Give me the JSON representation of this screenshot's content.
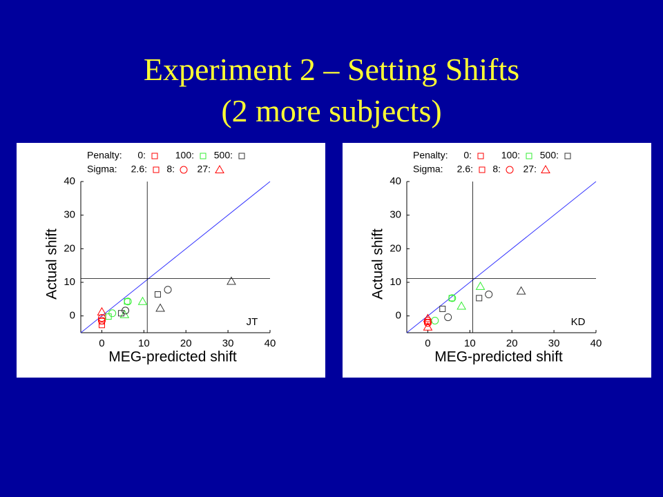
{
  "header": {
    "title_lines": [
      "Experiment 2 – Setting Shifts",
      "(2 more subjects)"
    ]
  },
  "chart_data": [
    {
      "type": "scatter",
      "xlabel": "MEG-predicted shift",
      "ylabel": "Actual shift",
      "annotation": "JT",
      "xlim": [
        -5,
        40
      ],
      "ylim": [
        -5,
        40
      ],
      "xticks": [
        0,
        10,
        20,
        30,
        40
      ],
      "yticks": [
        0,
        10,
        20,
        30,
        40
      ],
      "identity_line": true,
      "identity_color": "#3333ff",
      "vline": 10.8,
      "hline": 11.1,
      "legend": [
        {
          "label": "Penalty:",
          "items": [
            {
              "label": "0:",
              "color": "#ff0000",
              "marker": "square"
            },
            {
              "label": "100:",
              "color": "#33ee33",
              "marker": "square"
            },
            {
              "label": "500:",
              "color": "#333333",
              "marker": "square"
            }
          ]
        },
        {
          "label": "Sigma:",
          "items": [
            {
              "label": "2.6:",
              "color": "#ff0000",
              "marker": "square"
            },
            {
              "label": "8:",
              "color": "#ff0000",
              "marker": "circle"
            },
            {
              "label": "27:",
              "color": "#ff0000",
              "marker": "triangle"
            }
          ]
        }
      ],
      "series": [
        {
          "color": "#ff0000",
          "marker": "square",
          "x": [
            0,
            0
          ],
          "values": [
            -1.6,
            -2.7
          ]
        },
        {
          "color": "#ff0000",
          "marker": "circle",
          "x": [
            0,
            0
          ],
          "values": [
            -0.6,
            -1.4
          ]
        },
        {
          "color": "#ff0000",
          "marker": "triangle",
          "x": [
            0
          ],
          "values": [
            1.2
          ]
        },
        {
          "color": "#33ee33",
          "marker": "square",
          "x": [
            1.6,
            6
          ],
          "values": [
            -0.2,
            4.3
          ]
        },
        {
          "color": "#33ee33",
          "marker": "circle",
          "x": [
            2.5,
            6.2
          ],
          "values": [
            0.8,
            4.3
          ]
        },
        {
          "color": "#33ee33",
          "marker": "triangle",
          "x": [
            5.4,
            9.7
          ],
          "values": [
            0.4,
            4.3
          ]
        },
        {
          "color": "#333333",
          "marker": "square",
          "x": [
            4.6,
            13.3
          ],
          "values": [
            0.8,
            6.4
          ]
        },
        {
          "color": "#333333",
          "marker": "circle",
          "x": [
            5.6,
            15.7
          ],
          "values": [
            1.6,
            7.8
          ]
        },
        {
          "color": "#333333",
          "marker": "triangle",
          "x": [
            13.9,
            30.8
          ],
          "values": [
            2.3,
            10.3
          ]
        }
      ]
    },
    {
      "type": "scatter",
      "xlabel": "MEG-predicted shift",
      "ylabel": "Actual shift",
      "annotation": "KD",
      "xlim": [
        -5,
        40
      ],
      "ylim": [
        -5,
        40
      ],
      "xticks": [
        0,
        10,
        20,
        30,
        40
      ],
      "yticks": [
        0,
        10,
        20,
        30,
        40
      ],
      "identity_line": true,
      "identity_color": "#3333ff",
      "vline": 10.7,
      "hline": 11.1,
      "legend": [
        {
          "label": "Penalty:",
          "items": [
            {
              "label": "0:",
              "color": "#ff0000",
              "marker": "square"
            },
            {
              "label": "100:",
              "color": "#33ee33",
              "marker": "square"
            },
            {
              "label": "500:",
              "color": "#333333",
              "marker": "square"
            }
          ]
        },
        {
          "label": "Sigma:",
          "items": [
            {
              "label": "2.6:",
              "color": "#ff0000",
              "marker": "square"
            },
            {
              "label": "8:",
              "color": "#ff0000",
              "marker": "circle"
            },
            {
              "label": "27:",
              "color": "#ff0000",
              "marker": "triangle"
            }
          ]
        }
      ],
      "series": [
        {
          "color": "#ff0000",
          "marker": "square",
          "x": [
            0
          ],
          "values": [
            -1.8
          ]
        },
        {
          "color": "#ff0000",
          "marker": "circle",
          "x": [
            0,
            0
          ],
          "values": [
            -1.4,
            -2.1
          ]
        },
        {
          "color": "#ff0000",
          "marker": "triangle",
          "x": [
            0,
            0
          ],
          "values": [
            -0.8,
            -3.3
          ]
        },
        {
          "color": "#33ee33",
          "marker": "square",
          "x": [
            5.7
          ],
          "values": [
            5.3
          ]
        },
        {
          "color": "#33ee33",
          "marker": "circle",
          "x": [
            1.7,
            5.8
          ],
          "values": [
            -1.4,
            5.3
          ]
        },
        {
          "color": "#33ee33",
          "marker": "triangle",
          "x": [
            8,
            12.5
          ],
          "values": [
            2.9,
            8.8
          ]
        },
        {
          "color": "#333333",
          "marker": "square",
          "x": [
            3.5,
            12.2
          ],
          "values": [
            2.1,
            5.3
          ]
        },
        {
          "color": "#333333",
          "marker": "circle",
          "x": [
            4.8,
            14.5
          ],
          "values": [
            -0.4,
            6.4
          ]
        },
        {
          "color": "#333333",
          "marker": "triangle",
          "x": [
            22.2
          ],
          "values": [
            7.4
          ]
        }
      ]
    }
  ]
}
